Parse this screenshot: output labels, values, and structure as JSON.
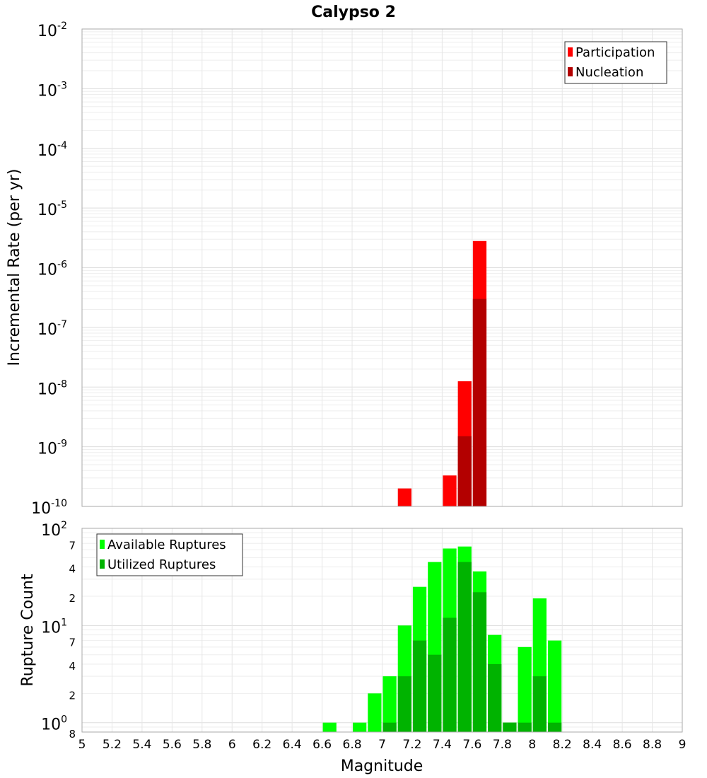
{
  "chart_data": {
    "title": "Calypso 2",
    "xlabel": "Magnitude",
    "x_ticks": [
      "5",
      "5.2",
      "5.4",
      "5.6",
      "5.8",
      "6",
      "6.2",
      "6.4",
      "6.6",
      "6.8",
      "7",
      "7.2",
      "7.4",
      "7.6",
      "7.8",
      "8",
      "8.2",
      "8.4",
      "8.6",
      "8.8",
      "9"
    ],
    "xlim": [
      5,
      9
    ],
    "panels": [
      {
        "type": "bar",
        "ylabel": "Incremental Rate (per yr)",
        "yscale": "log",
        "ylim": [
          1e-10,
          0.01
        ],
        "y_ticks": [
          {
            "base": "10",
            "exp": "-2"
          },
          {
            "base": "10",
            "exp": "-3"
          },
          {
            "base": "10",
            "exp": "-4"
          },
          {
            "base": "10",
            "exp": "-5"
          },
          {
            "base": "10",
            "exp": "-6"
          },
          {
            "base": "10",
            "exp": "-7"
          },
          {
            "base": "10",
            "exp": "-8"
          },
          {
            "base": "10",
            "exp": "-9"
          },
          {
            "base": "10",
            "exp": "-10"
          }
        ],
        "legend_position": "top-right",
        "series": [
          {
            "name": "Participation",
            "color": "#ff0000",
            "points": [
              [
                7.15,
                2e-10
              ],
              [
                7.45,
                3.3e-10
              ],
              [
                7.55,
                1.25e-08
              ],
              [
                7.65,
                2.8e-06
              ]
            ]
          },
          {
            "name": "Nucleation",
            "color": "#b30000",
            "points": [
              [
                7.55,
                1.5e-09
              ],
              [
                7.65,
                3e-07
              ]
            ]
          }
        ]
      },
      {
        "type": "bar",
        "ylabel": "Rupture Count",
        "yscale": "log",
        "ylim": [
          0.8,
          100
        ],
        "y_ticks": [
          {
            "base": "10",
            "exp": "2"
          },
          {
            "base": "10",
            "exp": "1"
          },
          {
            "base": "10",
            "exp": "0"
          }
        ],
        "y_minor_ticks": [
          {
            "label": "7",
            "value": 70
          },
          {
            "label": "4",
            "value": 40
          },
          {
            "label": "2",
            "value": 20
          },
          {
            "label": "7",
            "value": 7
          },
          {
            "label": "4",
            "value": 4
          },
          {
            "label": "2",
            "value": 2
          },
          {
            "label": "8",
            "value": 0.8
          }
        ],
        "legend_position": "top-left",
        "series": [
          {
            "name": "Available Ruptures",
            "color": "#00ff00",
            "points": [
              [
                6.65,
                1
              ],
              [
                6.85,
                1
              ],
              [
                6.95,
                2
              ],
              [
                7.05,
                3
              ],
              [
                7.15,
                10
              ],
              [
                7.25,
                25
              ],
              [
                7.35,
                45
              ],
              [
                7.45,
                62
              ],
              [
                7.55,
                65
              ],
              [
                7.65,
                36
              ],
              [
                7.75,
                8
              ],
              [
                7.85,
                1
              ],
              [
                7.95,
                6
              ],
              [
                8.05,
                19
              ],
              [
                8.15,
                7
              ]
            ]
          },
          {
            "name": "Utilized Ruptures",
            "color": "#00b300",
            "points": [
              [
                7.05,
                1
              ],
              [
                7.15,
                3
              ],
              [
                7.25,
                7
              ],
              [
                7.35,
                5
              ],
              [
                7.45,
                12
              ],
              [
                7.55,
                45
              ],
              [
                7.65,
                22
              ],
              [
                7.75,
                4
              ],
              [
                7.85,
                1
              ],
              [
                7.95,
                1
              ],
              [
                8.05,
                3
              ],
              [
                8.15,
                1
              ]
            ]
          }
        ]
      }
    ]
  }
}
